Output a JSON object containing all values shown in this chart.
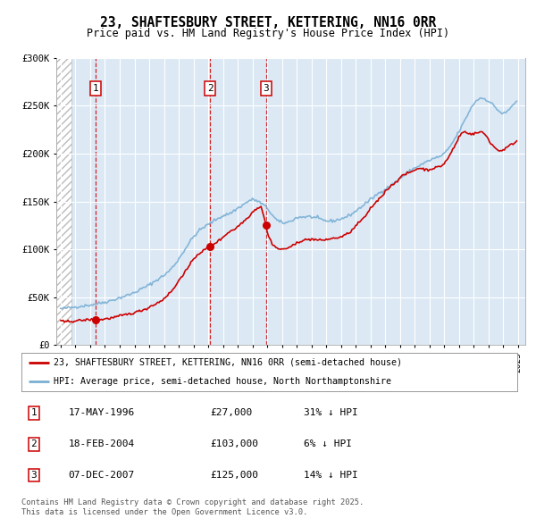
{
  "title": "23, SHAFTESBURY STREET, KETTERING, NN16 0RR",
  "subtitle": "Price paid vs. HM Land Registry's House Price Index (HPI)",
  "background_color": "#ffffff",
  "plot_bg_color": "#dce9f5",
  "grid_color": "#ffffff",
  "ylim": [
    0,
    300000
  ],
  "yticks": [
    0,
    50000,
    100000,
    150000,
    200000,
    250000,
    300000
  ],
  "ytick_labels": [
    "£0",
    "£50K",
    "£100K",
    "£150K",
    "£200K",
    "£250K",
    "£300K"
  ],
  "purchase_dates": [
    1996.37,
    2004.12,
    2007.92
  ],
  "purchase_prices": [
    27000,
    103000,
    125000
  ],
  "purchase_labels": [
    "1",
    "2",
    "3"
  ],
  "purchase_info": [
    {
      "label": "1",
      "date": "17-MAY-1996",
      "price": "£27,000",
      "hpi": "31% ↓ HPI"
    },
    {
      "label": "2",
      "date": "18-FEB-2004",
      "price": "£103,000",
      "hpi": "6% ↓ HPI"
    },
    {
      "label": "3",
      "date": "07-DEC-2007",
      "price": "£125,000",
      "hpi": "14% ↓ HPI"
    }
  ],
  "legend_entries": [
    "23, SHAFTESBURY STREET, KETTERING, NN16 0RR (semi-detached house)",
    "HPI: Average price, semi-detached house, North Northamptonshire"
  ],
  "footer": "Contains HM Land Registry data © Crown copyright and database right 2025.\nThis data is licensed under the Open Government Licence v3.0.",
  "red_color": "#cc0000",
  "blue_color": "#7aafd4",
  "xmin": 1993.7,
  "xmax": 2025.5
}
